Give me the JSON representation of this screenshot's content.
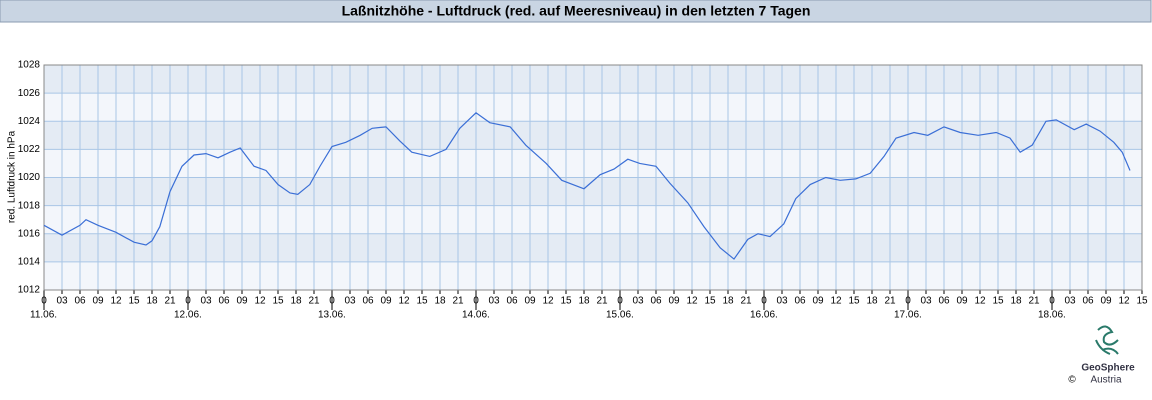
{
  "chart_data": {
    "type": "line",
    "title": "Laßnitzhöhe - Luftdruck (red. auf Meeresniveau) in den letzten 7 Tagen",
    "ylabel": "red. Luftdruck in hPa",
    "logo": {
      "name": "GeoSphere",
      "sub": "Austria",
      "copyright": "©"
    },
    "x": [
      0,
      3,
      6,
      7,
      9,
      12,
      15,
      17,
      18,
      19.3,
      21,
      23,
      25,
      27,
      29,
      31,
      32.7,
      35,
      37,
      39,
      41,
      42.3,
      44.3,
      46,
      48,
      50.3,
      52.7,
      54.7,
      57,
      59.3,
      61.3,
      64.3,
      67,
      69.3,
      72,
      74.3,
      77.7,
      80.3,
      83.7,
      86.3,
      90,
      92.7,
      95,
      97.3,
      99.3,
      102,
      104.3,
      107.3,
      110,
      112.7,
      115,
      117.3,
      119,
      121,
      123.3,
      125.3,
      127.7,
      130.3,
      132.7,
      135.3,
      137.7,
      140,
      142,
      145,
      147.3,
      150,
      152.7,
      155.7,
      158.7,
      161,
      162.7,
      164.7,
      167,
      168.7,
      171.7,
      173.7,
      176,
      178.3,
      179.7,
      181
    ],
    "series": [
      {
        "name": "Luftdruck",
        "color": "#3b6fd6",
        "values": [
          1016.6,
          1015.9,
          1016.6,
          1017.0,
          1016.6,
          1016.1,
          1015.4,
          1015.2,
          1015.5,
          1016.5,
          1019.0,
          1020.8,
          1021.6,
          1021.7,
          1021.4,
          1021.8,
          1022.1,
          1020.8,
          1020.5,
          1019.5,
          1018.9,
          1018.8,
          1019.5,
          1020.8,
          1022.2,
          1022.5,
          1023.0,
          1023.5,
          1023.6,
          1022.6,
          1021.8,
          1021.5,
          1022.0,
          1023.5,
          1024.6,
          1023.9,
          1023.6,
          1022.3,
          1021.0,
          1019.8,
          1019.2,
          1020.2,
          1020.6,
          1021.3,
          1021.0,
          1020.8,
          1019.6,
          1018.2,
          1016.5,
          1015.0,
          1014.2,
          1015.6,
          1016.0,
          1015.8,
          1016.7,
          1018.5,
          1019.5,
          1020.0,
          1019.8,
          1019.9,
          1020.3,
          1021.5,
          1022.8,
          1023.2,
          1023.0,
          1023.6,
          1023.2,
          1023.0,
          1023.2,
          1022.8,
          1021.8,
          1022.3,
          1024.0,
          1024.1,
          1023.4,
          1023.8,
          1023.3,
          1022.5,
          1021.8,
          1020.5
        ]
      }
    ],
    "xlim": [
      0,
      183
    ],
    "xticks": [
      0,
      {
        "value": 3,
        "label": "03"
      },
      {
        "value": 6,
        "label": "06"
      },
      {
        "value": 9,
        "label": "09"
      },
      12,
      15,
      18,
      21,
      {
        "value": 24,
        "label": "0"
      },
      {
        "value": 27,
        "label": "03"
      },
      {
        "value": 30,
        "label": "06"
      },
      {
        "value": 33,
        "label": "09"
      },
      {
        "value": 36,
        "label": "12"
      },
      {
        "value": 39,
        "label": "15"
      },
      {
        "value": 42,
        "label": "18"
      },
      {
        "value": 45,
        "label": "21"
      },
      {
        "value": 48,
        "label": "0"
      },
      {
        "value": 51,
        "label": "03"
      },
      {
        "value": 54,
        "label": "06"
      },
      {
        "value": 57,
        "label": "09"
      },
      {
        "value": 60,
        "label": "12"
      },
      {
        "value": 63,
        "label": "15"
      },
      {
        "value": 66,
        "label": "18"
      },
      {
        "value": 69,
        "label": "21"
      },
      {
        "value": 72,
        "label": "0"
      },
      {
        "value": 75,
        "label": "03"
      },
      {
        "value": 78,
        "label": "06"
      },
      {
        "value": 81,
        "label": "09"
      },
      {
        "value": 84,
        "label": "12"
      },
      {
        "value": 87,
        "label": "15"
      },
      {
        "value": 90,
        "label": "18"
      },
      {
        "value": 93,
        "label": "21"
      },
      {
        "value": 96,
        "label": "0"
      },
      {
        "value": 99,
        "label": "03"
      },
      {
        "value": 102,
        "label": "06"
      },
      {
        "value": 105,
        "label": "09"
      },
      {
        "value": 108,
        "label": "12"
      },
      {
        "value": 111,
        "label": "15"
      },
      {
        "value": 114,
        "label": "18"
      },
      {
        "value": 117,
        "label": "21"
      },
      {
        "value": 120,
        "label": "0"
      },
      {
        "value": 123,
        "label": "03"
      },
      {
        "value": 126,
        "label": "06"
      },
      {
        "value": 129,
        "label": "09"
      },
      {
        "value": 132,
        "label": "12"
      },
      {
        "value": 135,
        "label": "15"
      },
      {
        "value": 138,
        "label": "18"
      },
      {
        "value": 141,
        "label": "21"
      },
      {
        "value": 144,
        "label": "0"
      },
      {
        "value": 147,
        "label": "03"
      },
      {
        "value": 150,
        "label": "06"
      },
      {
        "value": 153,
        "label": "09"
      },
      {
        "value": 156,
        "label": "12"
      },
      {
        "value": 159,
        "label": "15"
      },
      {
        "value": 162,
        "label": "18"
      },
      {
        "value": 165,
        "label": "21"
      },
      {
        "value": 168,
        "label": "0"
      },
      {
        "value": 171,
        "label": "03"
      },
      {
        "value": 174,
        "label": "06"
      },
      {
        "value": 177,
        "label": "09"
      },
      {
        "value": 180,
        "label": "12"
      },
      {
        "value": 183,
        "label": "15"
      }
    ],
    "day_ticks": [
      {
        "value": 0,
        "label": "11.06."
      },
      {
        "value": 24,
        "label": "12.06."
      },
      {
        "value": 48,
        "label": "13.06."
      },
      {
        "value": 72,
        "label": "14.06."
      },
      {
        "value": 96,
        "label": "15.06."
      },
      {
        "value": 120,
        "label": "16.06."
      },
      {
        "value": 144,
        "label": "17.06."
      },
      {
        "value": 168,
        "label": "18.06."
      }
    ],
    "ylim": [
      1012,
      1028
    ],
    "yticks": [
      1012,
      1014,
      1016,
      1018,
      1020,
      1022,
      1024,
      1026,
      1028
    ],
    "grid": true
  }
}
